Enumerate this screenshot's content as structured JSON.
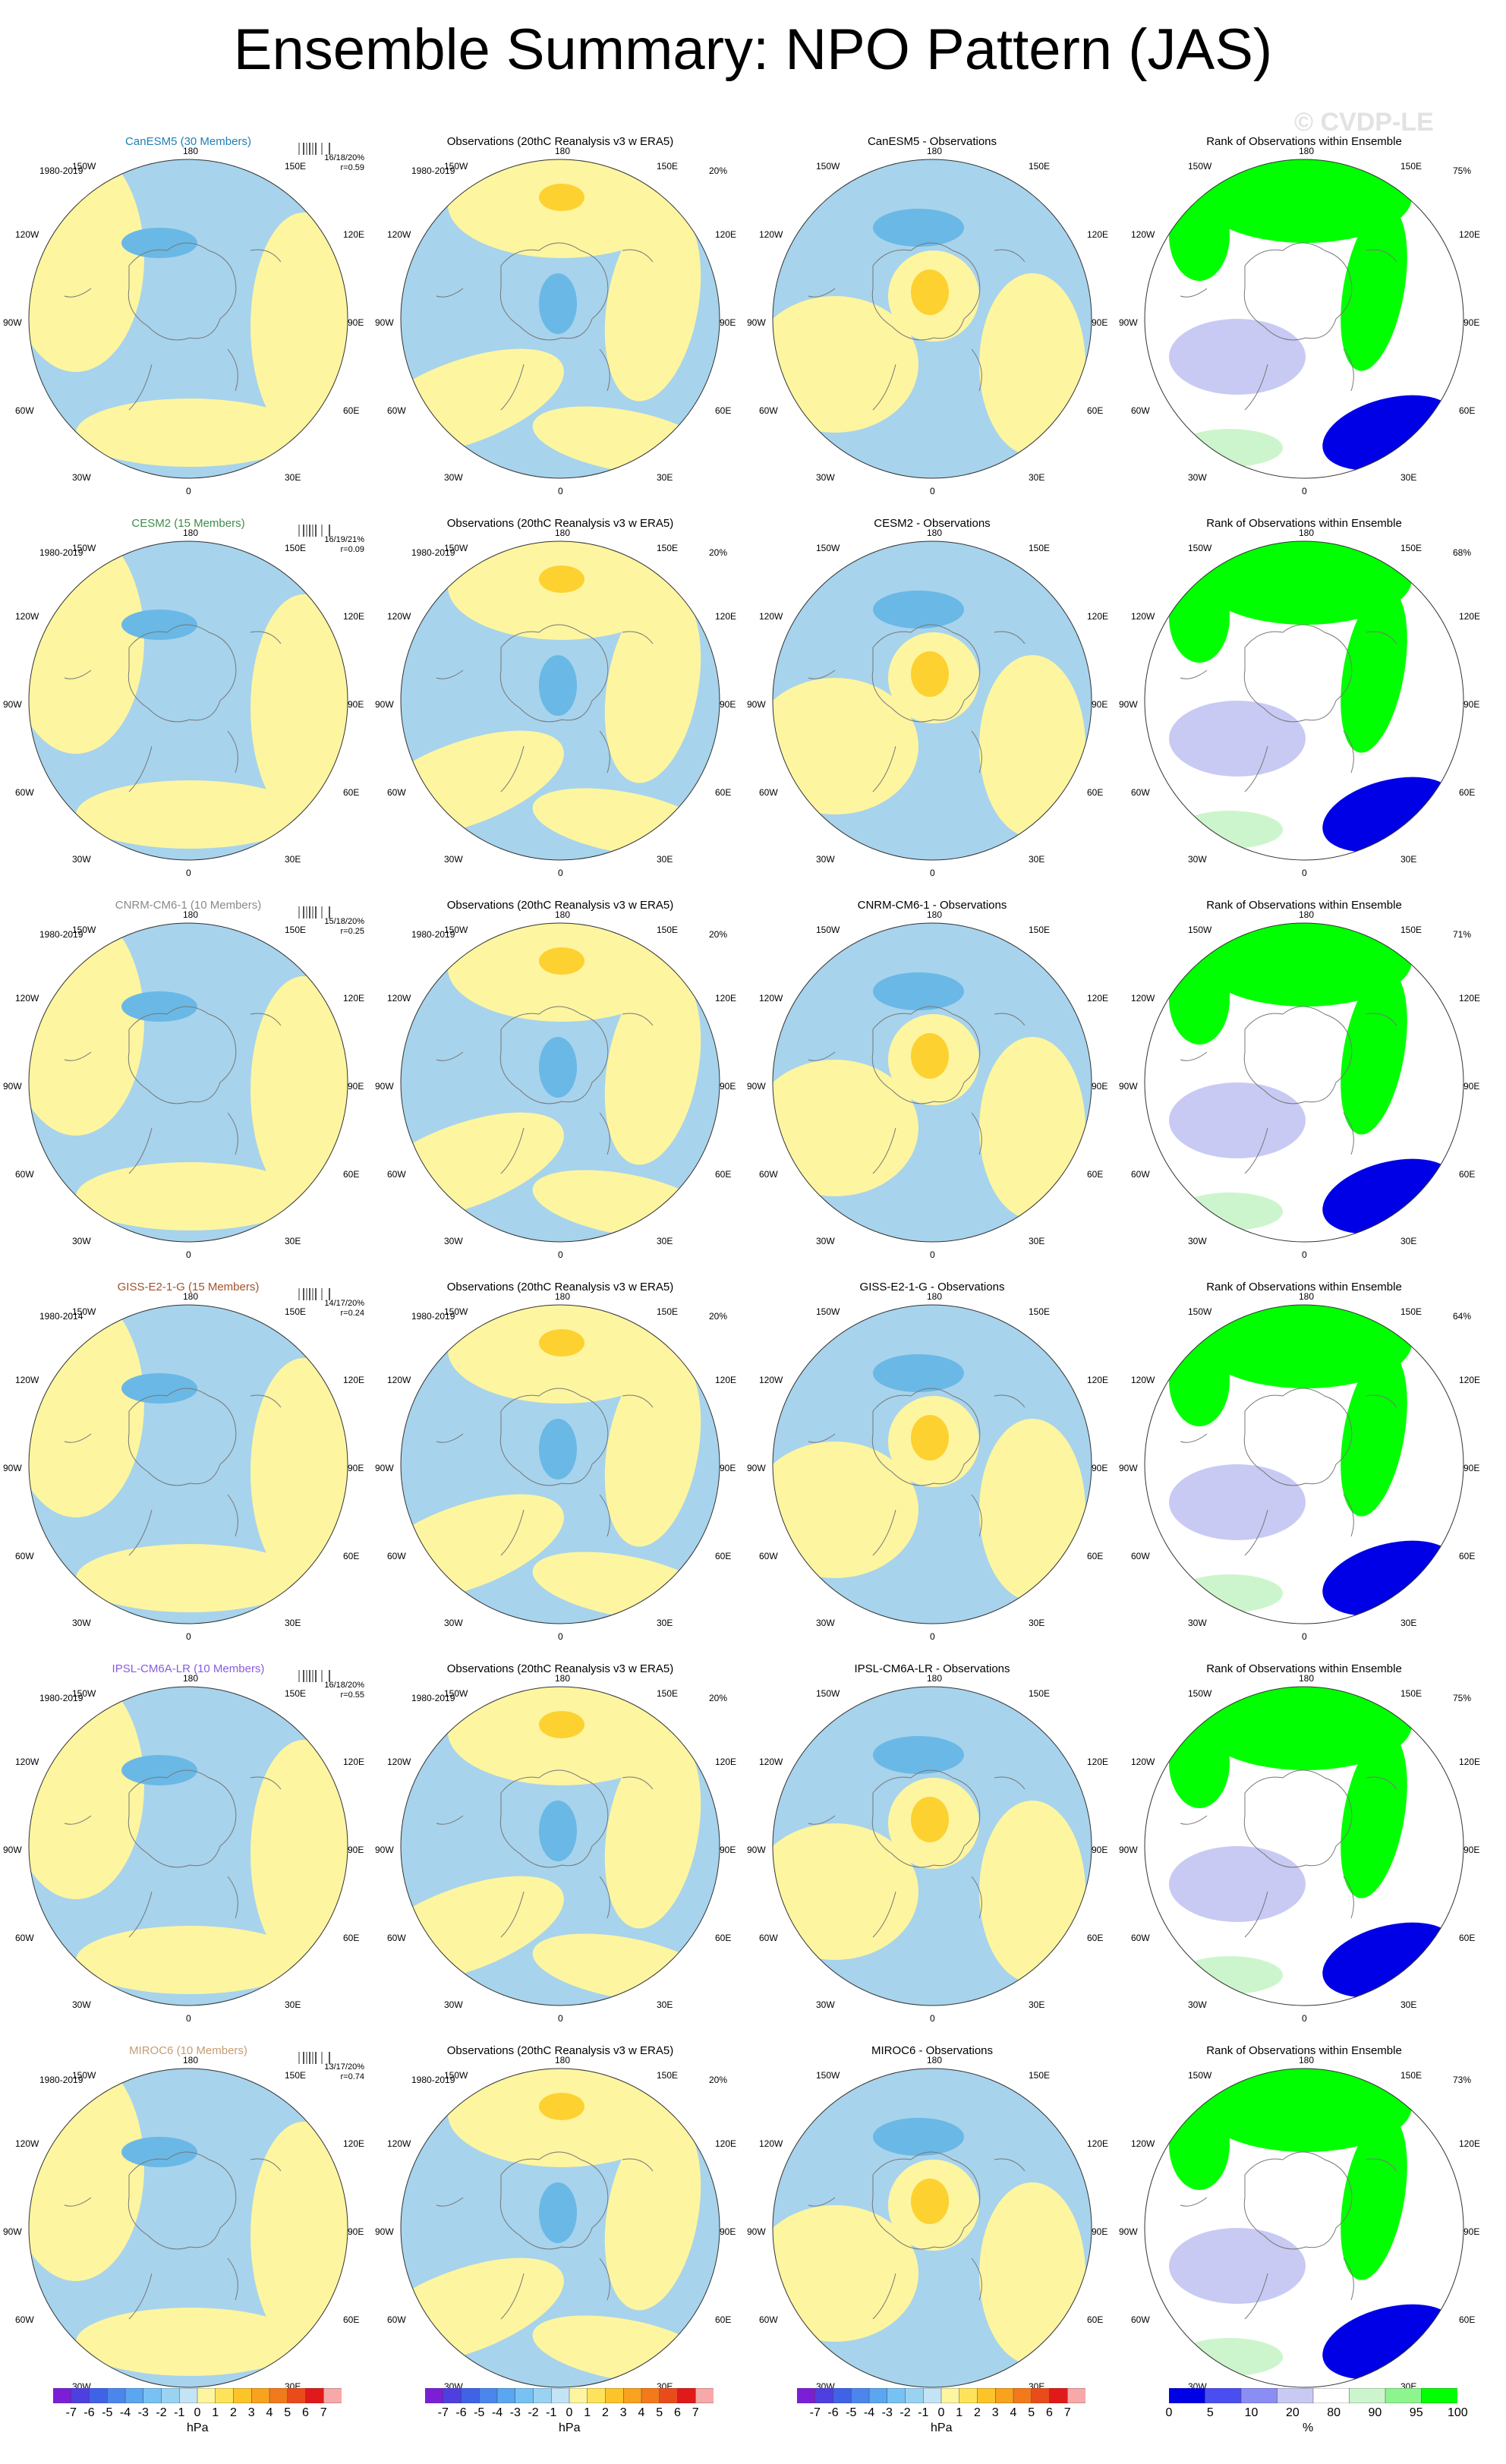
{
  "title": "Ensemble Summary: NPO Pattern (JAS)",
  "watermark": "© CVDP-LE",
  "colors": {
    "neg_light": "#a7d3ec",
    "neg_mid": "#6ab8e6",
    "neg_dark": "#3f8fdc",
    "pos_light": "#fdf5a0",
    "pos_mid": "#fdd130",
    "pos_dark": "#f29a1c",
    "rank_high": "#00ff00",
    "rank_mid": "#cdf5cd",
    "rank_low": "#0000e6",
    "rank_lowmid": "#c8caf3",
    "coast": "#777777"
  },
  "map_labels": {
    "top": "180",
    "bottom": "0",
    "tl": "150W",
    "tr": "150E",
    "ul": "120W",
    "ur": "120E",
    "ml": "90W",
    "mr": "90E",
    "ll": "60W",
    "lr": "60E",
    "bl": "30W",
    "br": "30E"
  },
  "rows": [
    {
      "model_title": "CanESM5 (30 Members)",
      "title_class": "t-canesm5",
      "period": "1980-2019",
      "stats": "16/18/20%",
      "r": "r=0.59",
      "obs_title": "Observations (20thC Reanalysis v3 w ERA5)",
      "obs_period": "1980-2019",
      "obs_pct": "20%",
      "diff_title": "CanESM5 - Observations",
      "rank_title": "Rank of Observations within Ensemble",
      "rank_pct": "75%"
    },
    {
      "model_title": "CESM2 (15 Members)",
      "title_class": "t-cesm2",
      "period": "1980-2019",
      "stats": "16/19/21%",
      "r": "r=0.09",
      "obs_title": "Observations (20thC Reanalysis v3 w ERA5)",
      "obs_period": "1980-2019",
      "obs_pct": "20%",
      "diff_title": "CESM2 - Observations",
      "rank_title": "Rank of Observations within Ensemble",
      "rank_pct": "68%"
    },
    {
      "model_title": "CNRM-CM6-1 (10 Members)",
      "title_class": "t-cnrm",
      "period": "1980-2019",
      "stats": "15/18/20%",
      "r": "r=0.25",
      "obs_title": "Observations (20thC Reanalysis v3 w ERA5)",
      "obs_period": "1980-2019",
      "obs_pct": "20%",
      "diff_title": "CNRM-CM6-1 - Observations",
      "rank_title": "Rank of Observations within Ensemble",
      "rank_pct": "71%"
    },
    {
      "model_title": "GISS-E2-1-G (15 Members)",
      "title_class": "t-giss",
      "period": "1980-2014",
      "stats": "14/17/20%",
      "r": "r=0.24",
      "obs_title": "Observations (20thC Reanalysis v3 w ERA5)",
      "obs_period": "1980-2019",
      "obs_pct": "20%",
      "diff_title": "GISS-E2-1-G - Observations",
      "rank_title": "Rank of Observations within Ensemble",
      "rank_pct": "64%"
    },
    {
      "model_title": "IPSL-CM6A-LR (10 Members)",
      "title_class": "t-ipsl",
      "period": "1980-2019",
      "stats": "16/18/20%",
      "r": "r=0.55",
      "obs_title": "Observations (20thC Reanalysis v3 w ERA5)",
      "obs_period": "1980-2019",
      "obs_pct": "20%",
      "diff_title": "IPSL-CM6A-LR - Observations",
      "rank_title": "Rank of Observations within Ensemble",
      "rank_pct": "75%"
    },
    {
      "model_title": "MIROC6 (10 Members)",
      "title_class": "t-miroc",
      "period": "1980-2019",
      "stats": "13/17/20%",
      "r": "r=0.74",
      "obs_title": "Observations (20thC Reanalysis v3 w ERA5)",
      "obs_period": "1980-2019",
      "obs_pct": "20%",
      "diff_title": "MIROC6 - Observations",
      "rank_title": "Rank of Observations within Ensemble",
      "rank_pct": "73%"
    }
  ],
  "colorbar_hpa": {
    "ticks": [
      "-7",
      "-6",
      "-5",
      "-4",
      "-3",
      "-2",
      "-1",
      "0",
      "1",
      "2",
      "3",
      "4",
      "5",
      "6",
      "7"
    ],
    "unit": "hPa",
    "colors": [
      "#7a1fd6",
      "#4d3fe0",
      "#3f62e6",
      "#4a86ec",
      "#5aa6f0",
      "#77c2f3",
      "#9ad2f2",
      "#c3e4f5",
      "#fdf5a0",
      "#fde35a",
      "#fdc42a",
      "#f9a21e",
      "#f27a1a",
      "#e94b1a",
      "#e01a1a",
      "#f7a8a8"
    ]
  },
  "colorbar_rank": {
    "ticks": [
      "0",
      "5",
      "10",
      "20",
      "80",
      "90",
      "95",
      "100"
    ],
    "unit": "%",
    "colors": [
      "#0000e6",
      "#4a4ef0",
      "#8a8df3",
      "#c8caf3",
      "#ffffff",
      "#cdf5cd",
      "#8df58d",
      "#00ff00"
    ]
  }
}
